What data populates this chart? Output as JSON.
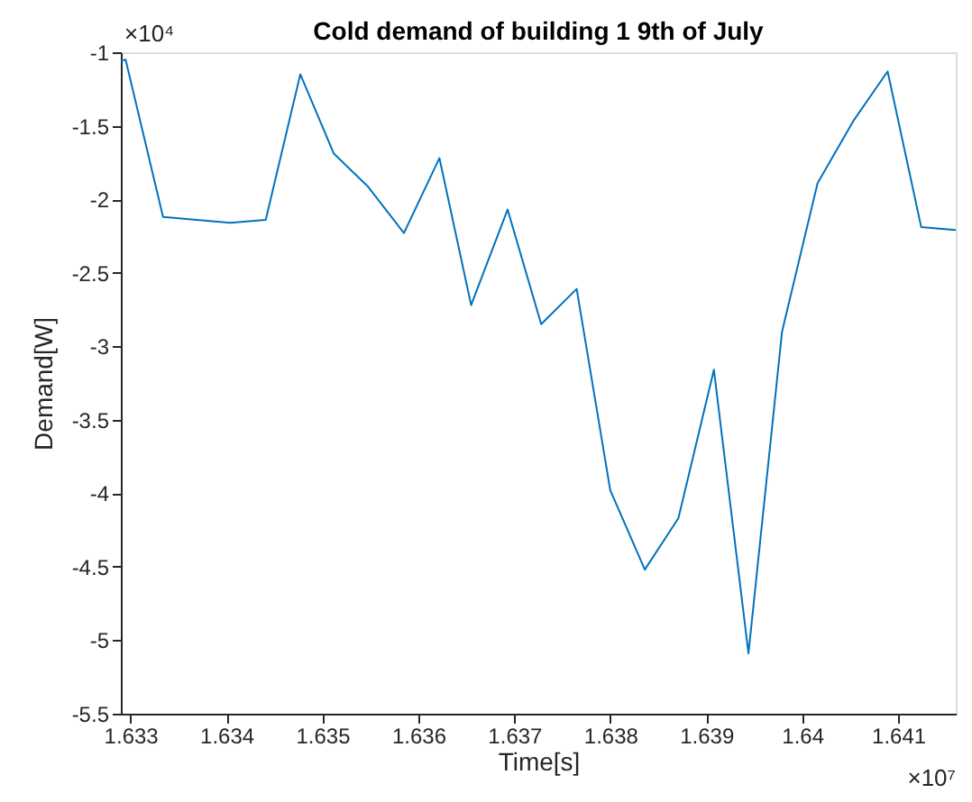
{
  "chart_data": {
    "type": "line",
    "title": "Cold demand of building 1 9th of July",
    "xlabel": "Time[s]",
    "ylabel": "Demand[W]",
    "x": [
      1.6329,
      1.63295,
      1.63334,
      1.63404,
      1.63441,
      1.63477,
      1.63512,
      1.63547,
      1.63585,
      1.63622,
      1.63655,
      1.63693,
      1.63728,
      1.63765,
      1.638,
      1.63836,
      1.63871,
      1.63908,
      1.63944,
      1.63979,
      1.64016,
      1.64053,
      1.64089,
      1.64124,
      1.6416
    ],
    "series": [
      {
        "color": "#0072bd",
        "values": [
          -1.06,
          -1.05,
          -2.12,
          -2.16,
          -2.14,
          -1.15,
          -1.69,
          -1.91,
          -2.23,
          -1.72,
          -2.72,
          -2.07,
          -2.85,
          -2.61,
          -3.98,
          -4.52,
          -4.17,
          -3.16,
          -5.09,
          -2.9,
          -1.89,
          -1.47,
          -1.13,
          -2.19,
          -2.21
        ]
      }
    ],
    "xlim": [
      1.6329,
      1.6416
    ],
    "xticks": [
      1.633,
      1.634,
      1.635,
      1.636,
      1.637,
      1.638,
      1.639,
      1.64,
      1.641
    ],
    "ylim": [
      -5.5,
      -1
    ],
    "yticks": [
      -5.5,
      -5,
      -4.5,
      -4,
      -3.5,
      -3,
      -2.5,
      -2,
      -1.5,
      -1
    ],
    "annotations": [
      "×10⁴",
      "×10⁷"
    ],
    "grid": false,
    "marker": "none",
    "line_style": "solid",
    "legend": false
  }
}
